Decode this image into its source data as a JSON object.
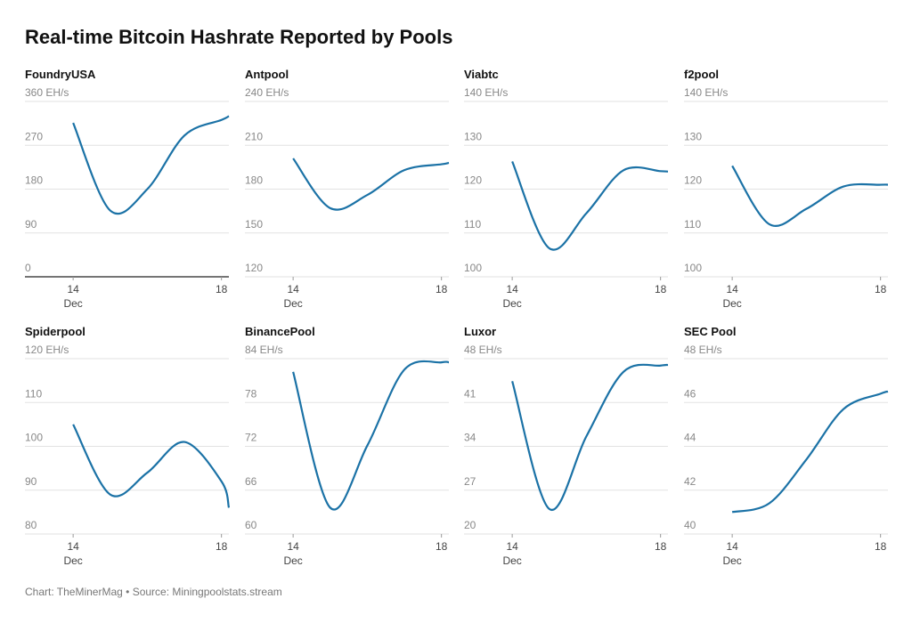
{
  "title": "Real-time Bitcoin Hashrate Reported by Pools",
  "source": "Chart: TheMinerMag • Source: Miningpoolstats.stream",
  "chart_data": [
    {
      "type": "line",
      "title": "FoundryUSA",
      "x": [
        14,
        15,
        16,
        17,
        18,
        18.2
      ],
      "series": [
        {
          "color": "#1b72a6",
          "values": [
            316,
            136,
            180,
            290,
            322,
            330
          ]
        }
      ],
      "xlim": [
        12.7,
        18.2
      ],
      "xticks": [
        14,
        18
      ],
      "x_sublabel": "Dec",
      "ylim": [
        0,
        360
      ],
      "yticks": [
        0,
        90,
        180,
        270,
        {
          "value": 360,
          "label": "360 EH/s"
        }
      ],
      "grid": true
    },
    {
      "type": "line",
      "title": "Antpool",
      "x": [
        14,
        15,
        16,
        17,
        18,
        18.2
      ],
      "series": [
        {
          "color": "#1b72a6",
          "values": [
            201,
            167,
            176,
            193,
            197,
            198
          ]
        }
      ],
      "xlim": [
        12.7,
        18.2
      ],
      "xticks": [
        14,
        18
      ],
      "x_sublabel": "Dec",
      "ylim": [
        120,
        240
      ],
      "yticks": [
        120,
        150,
        180,
        210,
        {
          "value": 240,
          "label": "240 EH/s"
        }
      ],
      "grid": true
    },
    {
      "type": "line",
      "title": "Viabtc",
      "x": [
        14,
        15,
        16,
        17,
        18,
        18.2
      ],
      "series": [
        {
          "color": "#1b72a6",
          "values": [
            126.3,
            106.5,
            114.5,
            124.3,
            124.1,
            124
          ]
        }
      ],
      "xlim": [
        12.7,
        18.2
      ],
      "xticks": [
        14,
        18
      ],
      "x_sublabel": "Dec",
      "ylim": [
        100,
        140
      ],
      "yticks": [
        100,
        110,
        120,
        130,
        {
          "value": 140,
          "label": "140 EH/s"
        }
      ],
      "grid": true
    },
    {
      "type": "line",
      "title": "f2pool",
      "x": [
        14,
        15,
        16,
        17,
        18,
        18.2
      ],
      "series": [
        {
          "color": "#1b72a6",
          "values": [
            125.3,
            112,
            115.5,
            120.6,
            121,
            121
          ]
        }
      ],
      "xlim": [
        12.7,
        18.2
      ],
      "xticks": [
        14,
        18
      ],
      "x_sublabel": "Dec",
      "ylim": [
        100,
        140
      ],
      "yticks": [
        100,
        110,
        120,
        130,
        {
          "value": 140,
          "label": "140 EH/s"
        }
      ],
      "grid": true
    },
    {
      "type": "line",
      "title": "Spiderpool",
      "x": [
        14,
        15,
        16,
        17,
        18,
        18.2
      ],
      "series": [
        {
          "color": "#1b72a6",
          "values": [
            105,
            89,
            94,
            101,
            92,
            86
          ]
        }
      ],
      "xlim": [
        12.7,
        18.2
      ],
      "xticks": [
        14,
        18
      ],
      "x_sublabel": "Dec",
      "ylim": [
        80,
        120
      ],
      "yticks": [
        80,
        90,
        100,
        110,
        {
          "value": 120,
          "label": "120 EH/s"
        }
      ],
      "grid": true
    },
    {
      "type": "line",
      "title": "BinancePool",
      "x": [
        14,
        15,
        16,
        17,
        18,
        18.2
      ],
      "series": [
        {
          "color": "#1b72a6",
          "values": [
            82.2,
            63.6,
            72.1,
            82.5,
            83.5,
            83.5
          ]
        }
      ],
      "xlim": [
        12.7,
        18.2
      ],
      "xticks": [
        14,
        18
      ],
      "x_sublabel": "Dec",
      "ylim": [
        60,
        84
      ],
      "yticks": [
        60,
        66,
        72,
        78,
        {
          "value": 84,
          "label": "84 EH/s"
        }
      ],
      "grid": true
    },
    {
      "type": "line",
      "title": "Luxor",
      "x": [
        14,
        15,
        16,
        17,
        18,
        18.2
      ],
      "series": [
        {
          "color": "#1b72a6",
          "values": [
            44.4,
            24,
            35.6,
            45.9,
            46.9,
            47
          ]
        }
      ],
      "xlim": [
        12.7,
        18.2
      ],
      "xticks": [
        14,
        18
      ],
      "x_sublabel": "Dec",
      "ylim": [
        20,
        48
      ],
      "yticks": [
        20,
        27,
        34,
        41,
        {
          "value": 48,
          "label": "48 EH/s"
        }
      ],
      "grid": true
    },
    {
      "type": "line",
      "title": "SEC Pool",
      "x": [
        14,
        15,
        16,
        17,
        18,
        18.2
      ],
      "series": [
        {
          "color": "#1b72a6",
          "values": [
            41,
            41.4,
            43.4,
            45.7,
            46.4,
            46.5
          ]
        }
      ],
      "xlim": [
        12.7,
        18.2
      ],
      "xticks": [
        14,
        18
      ],
      "x_sublabel": "Dec",
      "ylim": [
        40,
        48
      ],
      "yticks": [
        40,
        42,
        44,
        46,
        {
          "value": 48,
          "label": "48 EH/s"
        }
      ],
      "grid": true
    }
  ]
}
